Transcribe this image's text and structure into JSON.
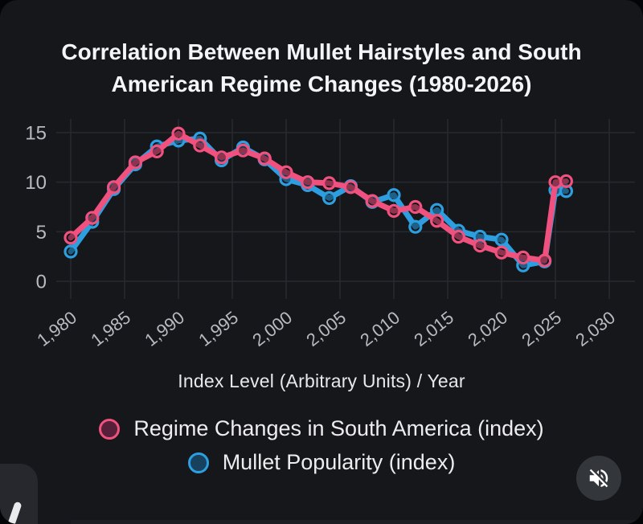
{
  "card": {
    "title": "Correlation Between Mullet Hairstyles and South American Regime Changes (1980-2026)",
    "title_line1": "Correlation Between Mullet Hairstyles and South",
    "title_line2": "American Regime Changes (1980-2026)",
    "axis_caption": "Index Level (Arbitrary Units) / Year"
  },
  "legend": [
    {
      "label": "Regime Changes in South America (index)",
      "color": "#f1517e",
      "swatch_fill": "#56203a"
    },
    {
      "label": "Mullet Popularity (index)",
      "color": "#2d9fe0",
      "swatch_fill": "#17415c"
    }
  ],
  "controls": {
    "mute_button_icon": "muted-speaker-icon"
  },
  "colors": {
    "card_bg": "#15171b",
    "outer_bg": "#030405",
    "grid": "#272a30",
    "tick_text": "#b7bac0",
    "title_text": "#f4f5f6",
    "series_pink": "#f1517e",
    "series_blue": "#2d9fe0",
    "marker_fill": "rgba(8,10,14,0.42)"
  },
  "chart_data": {
    "type": "line",
    "title": "Correlation Between Mullet Hairstyles and South American Regime Changes (1980-2026)",
    "xlabel": "Index Level (Arbitrary Units) / Year",
    "ylabel": "",
    "grid": true,
    "legend_position": "bottom",
    "xlim": [
      1980,
      2030
    ],
    "ylim": [
      0,
      15
    ],
    "yticks": [
      0,
      5,
      10,
      15
    ],
    "xticks": [
      1980,
      1985,
      1990,
      1995,
      2000,
      2005,
      2010,
      2015,
      2020,
      2025,
      2030
    ],
    "xtick_labels": [
      "1,980",
      "1,985",
      "1,990",
      "1,995",
      "2,000",
      "2,005",
      "2,010",
      "2,015",
      "2,020",
      "2,025",
      "2,030"
    ],
    "x": [
      1980,
      1982,
      1984,
      1986,
      1988,
      1990,
      1992,
      1994,
      1996,
      1998,
      2000,
      2002,
      2004,
      2006,
      2008,
      2010,
      2012,
      2014,
      2016,
      2018,
      2020,
      2022,
      2024,
      2025,
      2026
    ],
    "series": [
      {
        "name": "Mullet Popularity (index)",
        "color": "#2d9fe0",
        "values": [
          3.0,
          6.0,
          9.3,
          11.8,
          13.6,
          14.2,
          14.4,
          12.2,
          13.5,
          12.3,
          10.3,
          9.7,
          8.4,
          9.6,
          8.0,
          8.7,
          5.5,
          7.2,
          5.1,
          4.5,
          4.2,
          1.6,
          2.0,
          9.2,
          9.1
        ]
      },
      {
        "name": "Regime Changes in South America (index)",
        "color": "#f1517e",
        "values": [
          4.4,
          6.4,
          9.5,
          12.0,
          13.1,
          14.9,
          13.7,
          12.5,
          13.2,
          12.4,
          11.0,
          10.0,
          9.9,
          9.5,
          8.1,
          7.1,
          7.5,
          6.1,
          4.5,
          3.6,
          2.9,
          2.4,
          2.1,
          10.0,
          10.1
        ]
      }
    ]
  }
}
